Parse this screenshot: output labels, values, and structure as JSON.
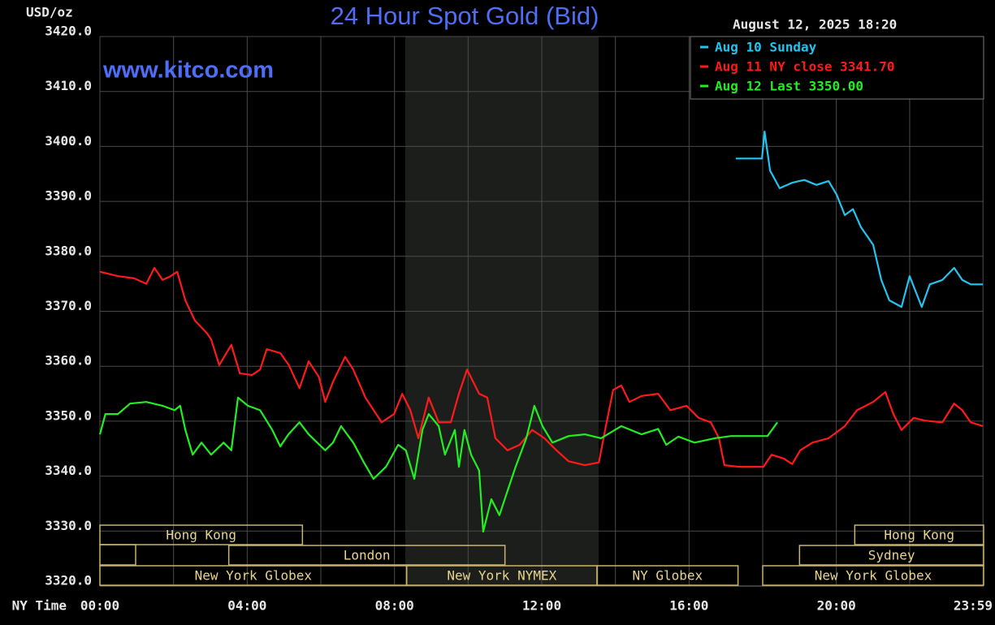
{
  "chart_data": {
    "type": "line",
    "title": "24 Hour Spot Gold (Bid)",
    "y_label": "USD/oz",
    "timestamp": "August 12, 2025 18:20",
    "watermark": "www.kitco.com",
    "x_label": "NY Time",
    "xlim": [
      0,
      24
    ],
    "ylim": [
      3320,
      3420
    ],
    "xticks": [
      {
        "value": 0,
        "label": "00:00"
      },
      {
        "value": 4,
        "label": "04:00"
      },
      {
        "value": 8,
        "label": "08:00"
      },
      {
        "value": 12,
        "label": "12:00"
      },
      {
        "value": 16,
        "label": "16:00"
      },
      {
        "value": 20,
        "label": "20:00"
      },
      {
        "value": 23.983,
        "label": "23:59"
      }
    ],
    "yticks": [
      {
        "value": 3320,
        "label": "3320.0"
      },
      {
        "value": 3330,
        "label": "3330.0"
      },
      {
        "value": 3340,
        "label": "3340.0"
      },
      {
        "value": 3350,
        "label": "3350.0"
      },
      {
        "value": 3360,
        "label": "3360.0"
      },
      {
        "value": 3370,
        "label": "3370.0"
      },
      {
        "value": 3380,
        "label": "3380.0"
      },
      {
        "value": 3390,
        "label": "3390.0"
      },
      {
        "value": 3400,
        "label": "3400.0"
      },
      {
        "value": 3410,
        "label": "3410.0"
      },
      {
        "value": 3420,
        "label": "3420.0"
      }
    ],
    "grid": true,
    "legend": "top-right",
    "series": [
      {
        "name": "Aug 10 Sunday",
        "color": "#22c4f0",
        "x": [
          17.27,
          17.98,
          18.05,
          18.2,
          18.46,
          18.8,
          19.13,
          19.46,
          19.79,
          20.01,
          20.23,
          20.45,
          20.67,
          21,
          21.22,
          21.44,
          21.77,
          21.99,
          22.32,
          22.54,
          22.88,
          23.2,
          23.42,
          23.65,
          23.98
        ],
        "values": [
          3397.8,
          3397.8,
          3402.7,
          3395.6,
          3392.4,
          3393.4,
          3393.9,
          3393,
          3393.7,
          3391.2,
          3387.5,
          3388.6,
          3385.3,
          3382.1,
          3375.7,
          3372,
          3370.8,
          3376.4,
          3370.8,
          3374.9,
          3375.7,
          3377.9,
          3375.7,
          3374.9,
          3374.9
        ]
      },
      {
        "name": "Aug 11 NY close 3341.70",
        "color": "#ff1a1a",
        "x": [
          0,
          0.49,
          0.93,
          1.26,
          1.48,
          1.7,
          1.92,
          2.1,
          2.32,
          2.58,
          2.91,
          3.02,
          3.24,
          3.57,
          3.8,
          4.13,
          4.35,
          4.53,
          4.9,
          5.13,
          5.42,
          5.67,
          5.95,
          6.12,
          6.33,
          6.66,
          6.88,
          7.21,
          7.65,
          7.99,
          8.21,
          8.43,
          8.65,
          8.93,
          9.2,
          9.53,
          9.75,
          9.97,
          10.3,
          10.52,
          10.74,
          11.07,
          11.4,
          11.74,
          12.07,
          12.4,
          12.73,
          13.17,
          13.55,
          13.72,
          13.94,
          14.16,
          14.38,
          14.71,
          15.16,
          15.49,
          15.93,
          16.26,
          16.59,
          16.81,
          16.96,
          17.36,
          18.02,
          18.24,
          18.57,
          18.8,
          19.02,
          19.35,
          19.79,
          20.23,
          20.56,
          21,
          21.33,
          21.55,
          21.77,
          22.1,
          22.41,
          22.88,
          23.2,
          23.42,
          23.65,
          23.98
        ],
        "values": [
          3377.2,
          3376.4,
          3376,
          3375,
          3377.9,
          3375.7,
          3376.4,
          3377.2,
          3372,
          3368.3,
          3366,
          3364.9,
          3360.2,
          3363.9,
          3358.7,
          3358.4,
          3359.4,
          3363.1,
          3362.4,
          3360.2,
          3356,
          3360.9,
          3358,
          3353.5,
          3357.2,
          3361.7,
          3359.4,
          3354.3,
          3349.8,
          3351.3,
          3355,
          3352,
          3346.9,
          3354.3,
          3349.8,
          3349.8,
          3355,
          3359.4,
          3355,
          3354.3,
          3346.9,
          3344.7,
          3345.7,
          3348.4,
          3346.9,
          3344.7,
          3342.7,
          3342,
          3342.5,
          3348.4,
          3355.7,
          3356.5,
          3353.5,
          3354.6,
          3355,
          3352,
          3352.8,
          3350.6,
          3349.8,
          3346.9,
          3342,
          3341.7,
          3341.7,
          3343.9,
          3343.2,
          3342.2,
          3344.7,
          3346.1,
          3346.9,
          3349.1,
          3352,
          3353.5,
          3355.3,
          3351.3,
          3348.4,
          3350.6,
          3350.1,
          3349.8,
          3353.2,
          3352,
          3349.8,
          3349.1
        ]
      },
      {
        "name": "Aug 12 Last 3350.00",
        "color": "#22ee22",
        "x": [
          0,
          0.15,
          0.49,
          0.82,
          1.26,
          1.7,
          2.03,
          2.18,
          2.32,
          2.52,
          2.76,
          3.02,
          3.36,
          3.57,
          3.75,
          4.02,
          4.35,
          4.68,
          4.9,
          5.12,
          5.42,
          5.67,
          6.12,
          6.33,
          6.55,
          6.88,
          7.17,
          7.43,
          7.77,
          8.1,
          8.31,
          8.54,
          8.76,
          8.93,
          9.2,
          9.37,
          9.64,
          9.75,
          9.9,
          10.08,
          10.3,
          10.41,
          10.63,
          10.85,
          11.07,
          11.29,
          11.58,
          11.8,
          12.02,
          12.29,
          12.73,
          13.17,
          13.61,
          14.16,
          14.71,
          15.16,
          15.38,
          15.71,
          16.15,
          16.7,
          17.14,
          18.13,
          18.4
        ],
        "values": [
          3347.6,
          3351.3,
          3351.3,
          3353.2,
          3353.5,
          3352.8,
          3352,
          3352.8,
          3348.4,
          3343.9,
          3346.1,
          3343.9,
          3346.1,
          3344.7,
          3354.3,
          3352.8,
          3352,
          3348.4,
          3345.4,
          3347.6,
          3349.8,
          3347.6,
          3344.7,
          3346.1,
          3349.1,
          3346.1,
          3342.5,
          3339.5,
          3341.7,
          3345.7,
          3344.7,
          3339.5,
          3348.4,
          3351.3,
          3349.1,
          3343.9,
          3348.4,
          3341.7,
          3348.4,
          3343.9,
          3341,
          3329.9,
          3335.8,
          3332.9,
          3337.3,
          3341.7,
          3346.9,
          3352.8,
          3349.1,
          3346.1,
          3347.3,
          3347.6,
          3346.9,
          3349.1,
          3347.6,
          3348.6,
          3345.7,
          3347.2,
          3346.1,
          3346.9,
          3347.3,
          3347.3,
          3349.8
        ]
      }
    ],
    "session_rows": [
      [
        {
          "name": "Hong Kong",
          "start": 0,
          "end": 5.5
        },
        {
          "name": "Hong Kong",
          "start": 20.5,
          "end": 24
        }
      ],
      [
        {
          "name": "London",
          "start": 3.5,
          "end": 11
        },
        {
          "name": "Sydney",
          "start": 19,
          "end": 24
        }
      ],
      [
        {
          "name": "New York Globex",
          "start": 0,
          "end": 8.33
        },
        {
          "name": "New York NYMEX",
          "start": 8.33,
          "end": 13.5
        },
        {
          "name": "NY Globex",
          "start": 13.5,
          "end": 17.33
        },
        {
          "name": "New York Globex",
          "start": 18,
          "end": 24
        }
      ]
    ]
  }
}
